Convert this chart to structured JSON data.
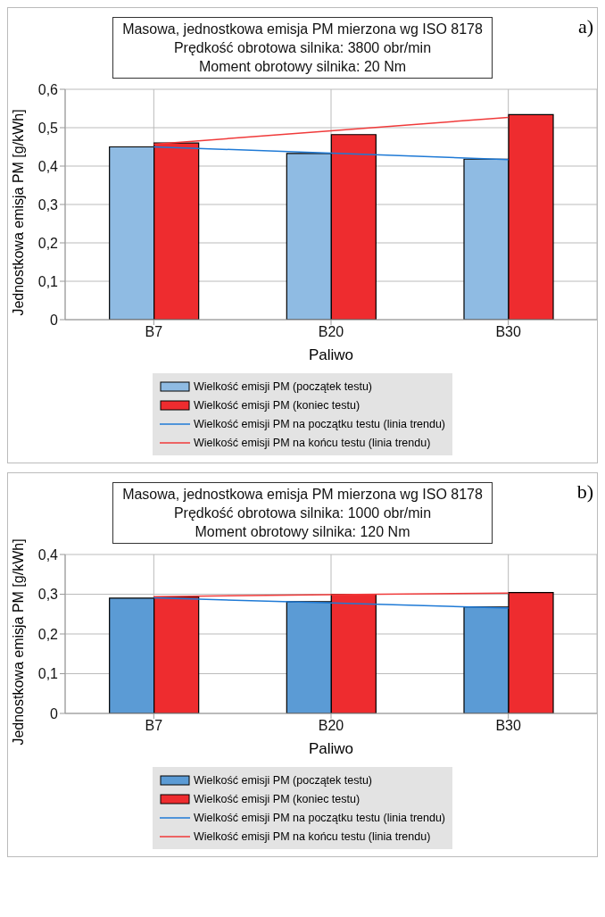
{
  "chart_data": [
    {
      "type": "bar",
      "title": "Masowa, jednostkowa emisja PM mierzona wg ISO 8178\nPrędkość obrotowa silnika: 3800 obr/min\nMoment obrotowy silnika: 20 Nm",
      "xlabel": "Paliwo",
      "ylabel": "Jednostkowa emisja PM [g/kWh]",
      "annotations": [
        "a)"
      ],
      "categories": [
        "B7",
        "B20",
        "B30"
      ],
      "series": [
        {
          "name": "Wielkość emisji PM (początek testu)",
          "color": "#8fbbe3",
          "values": [
            0.45,
            0.433,
            0.418
          ]
        },
        {
          "name": "Wielkość emisji PM (koniec testu)",
          "color": "#ee2c2f",
          "values": [
            0.46,
            0.482,
            0.534
          ]
        },
        {
          "name": "Wielkość emisji PM na początku testu (linia trendu)",
          "type": "line",
          "color": "#1f7ad6",
          "values": [
            0.45,
            0.434,
            0.417
          ]
        },
        {
          "name": "Wielkość emisji PM na końcu testu (linia trendu)",
          "type": "line",
          "color": "#f03a3a",
          "values": [
            0.457,
            0.492,
            0.527
          ]
        }
      ],
      "ylim": [
        0,
        0.6
      ],
      "yticks": [
        0,
        {
          "value": 0.1,
          "label": "0,1"
        },
        {
          "value": 0.2,
          "label": "0,2"
        },
        {
          "value": 0.3,
          "label": "0,3"
        },
        {
          "value": 0.4,
          "label": "0,4"
        },
        {
          "value": 0.5,
          "label": "0,5"
        },
        {
          "value": 0.6,
          "label": "0,6"
        }
      ],
      "grid": true,
      "legend": "bottom",
      "marker": "none"
    },
    {
      "type": "bar",
      "title": "Masowa, jednostkowa emisja PM mierzona wg ISO 8178\nPrędkość obrotowa silnika: 1000 obr/min\nMoment obrotowy silnika: 120 Nm",
      "xlabel": "Paliwo",
      "ylabel": "Jednostkowa emisja PM [g/kWh]",
      "annotations": [
        "b)"
      ],
      "categories": [
        "B7",
        "B20",
        "B30"
      ],
      "series": [
        {
          "name": "Wielkość emisji PM (początek testu)",
          "color": "#5b9bd5",
          "values": [
            0.29,
            0.281,
            0.268
          ]
        },
        {
          "name": "Wielkość emisji PM (koniec testu)",
          "color": "#ee2c2f",
          "values": [
            0.293,
            0.3,
            0.304
          ]
        },
        {
          "name": "Wielkość emisji PM na początku testu (linia trendu)",
          "type": "line",
          "color": "#1f7ad6",
          "values": [
            0.291,
            0.278,
            0.265
          ]
        },
        {
          "name": "Wielkość emisji PM na końcu testu (linia trendu)",
          "type": "line",
          "color": "#f03a3a",
          "values": [
            0.294,
            0.299,
            0.303
          ]
        }
      ],
      "ylim": [
        0,
        0.4
      ],
      "yticks": [
        0,
        {
          "value": 0.1,
          "label": "0,1"
        },
        {
          "value": 0.2,
          "label": "0,2"
        },
        {
          "value": 0.3,
          "label": "0,3"
        },
        {
          "value": 0.4,
          "label": "0,4"
        }
      ],
      "grid": true,
      "legend": "bottom",
      "marker": "none"
    }
  ]
}
